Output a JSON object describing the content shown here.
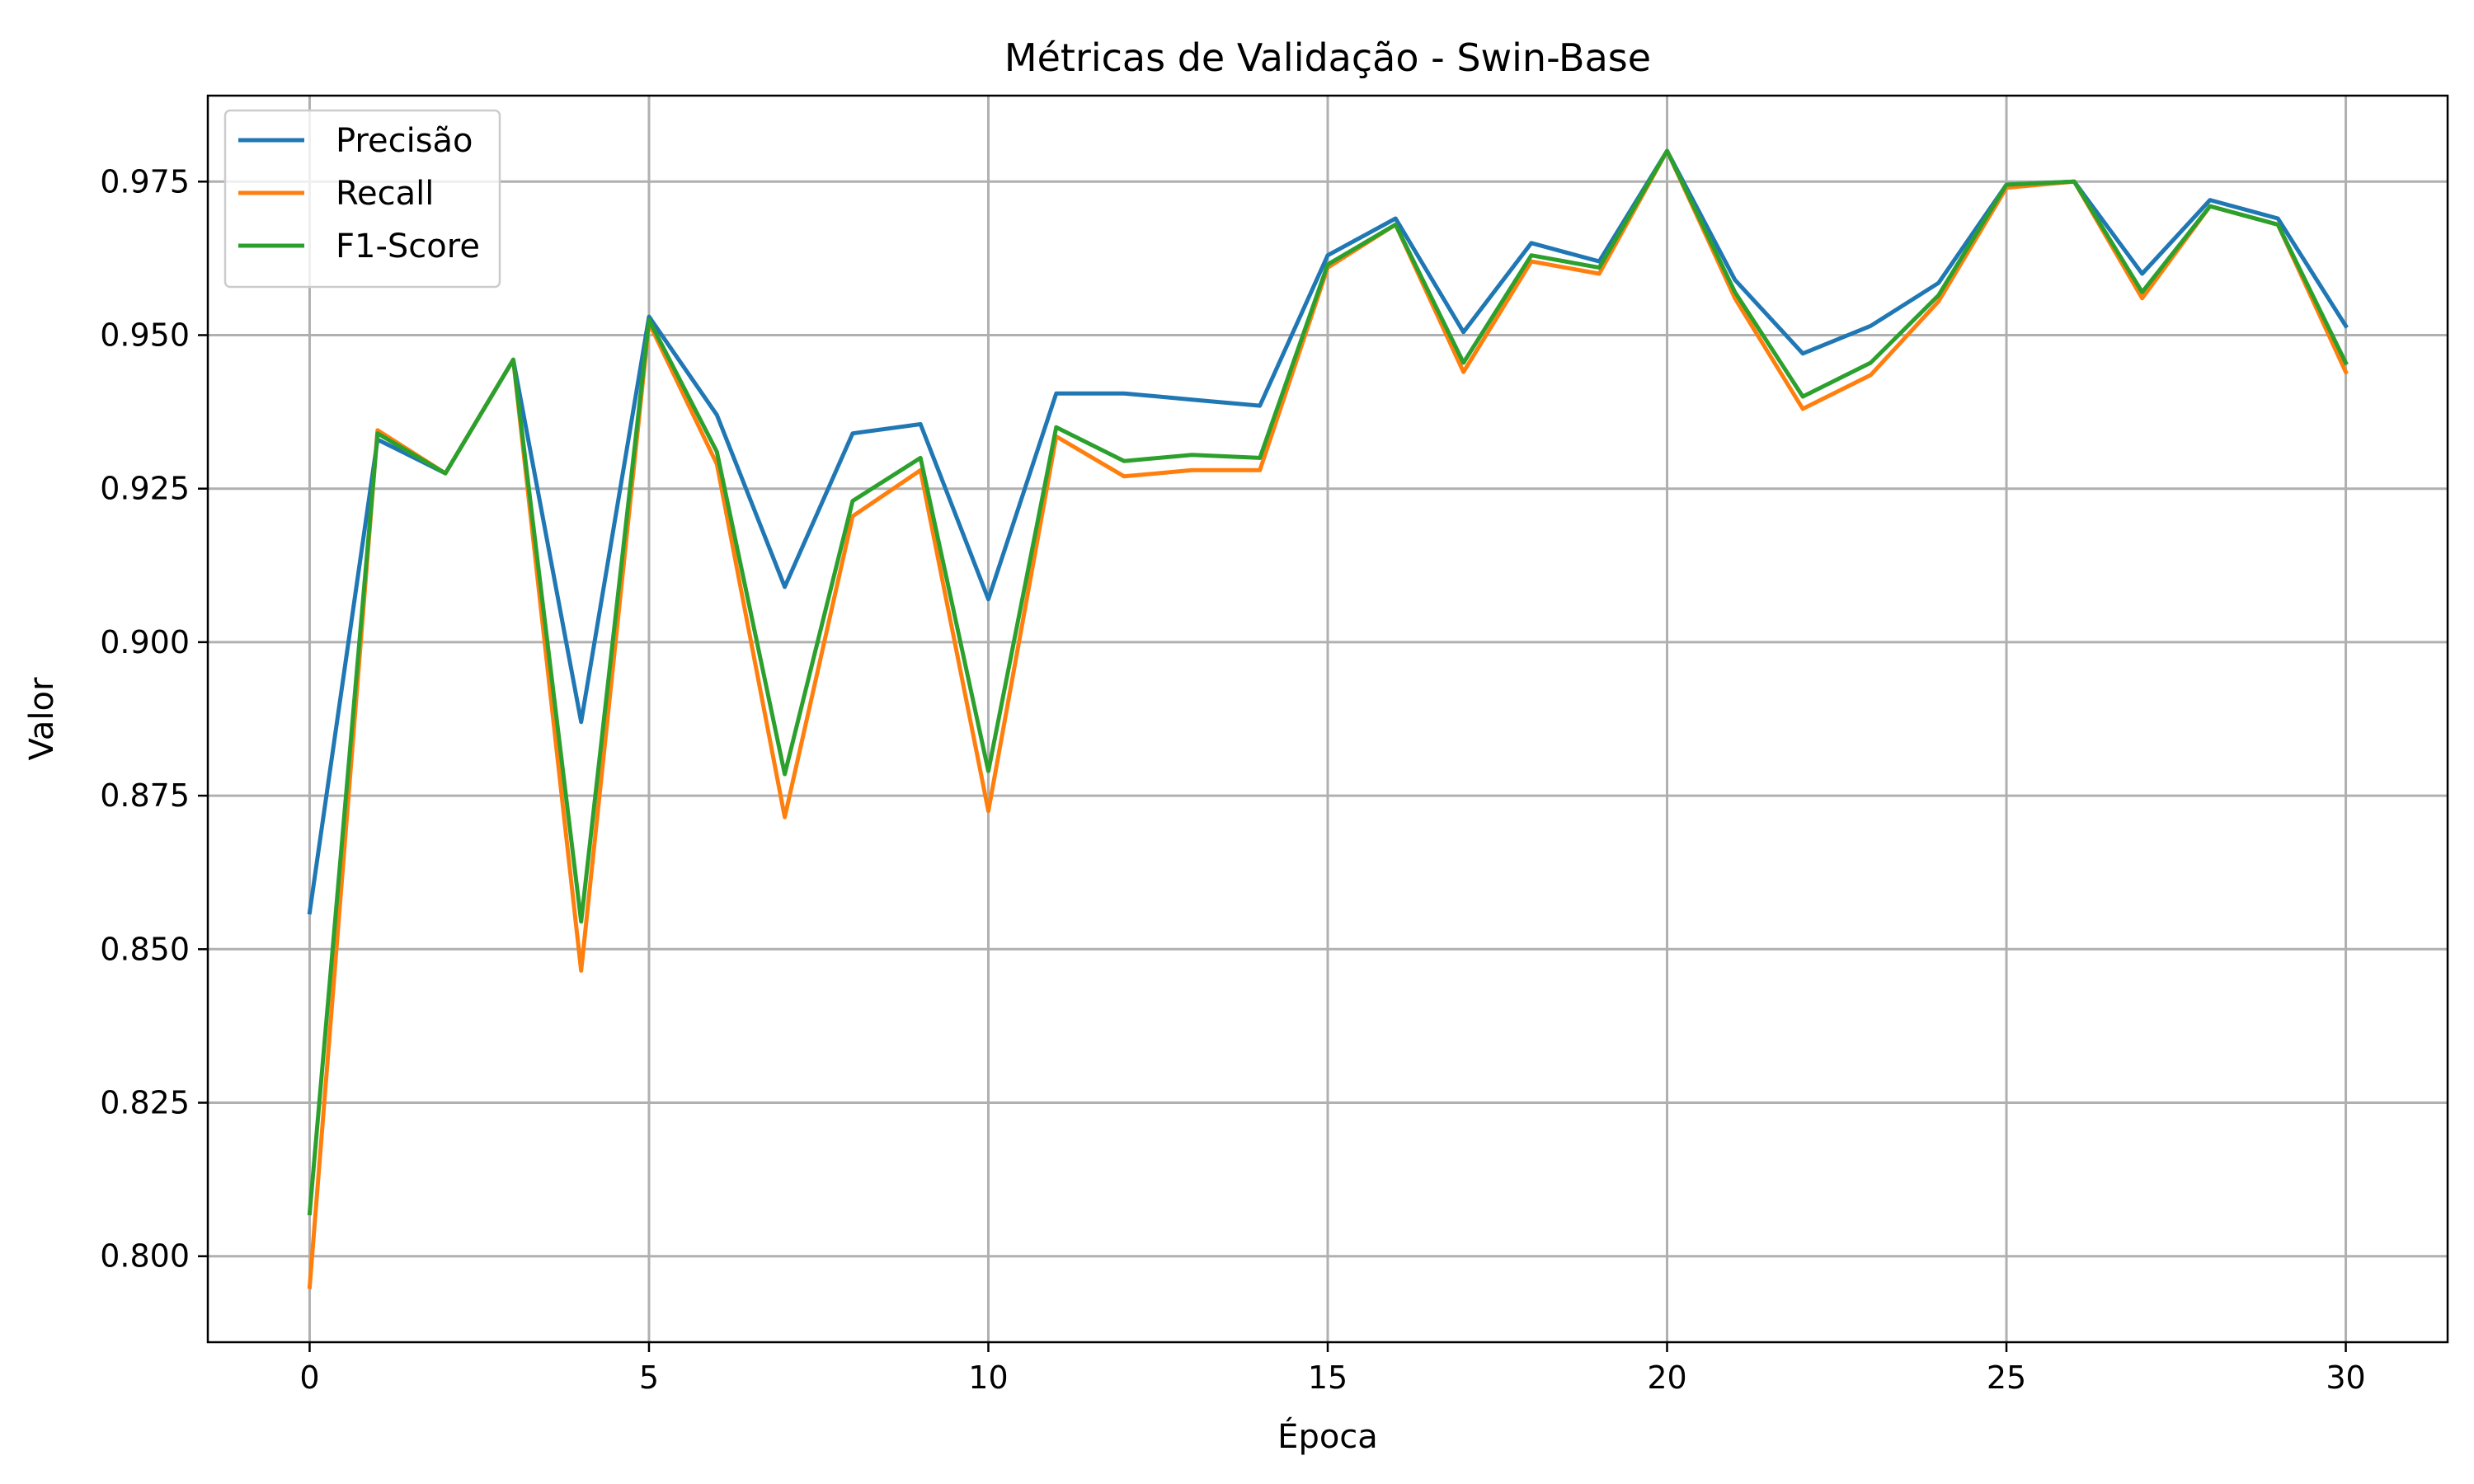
{
  "chart_data": {
    "type": "line",
    "title": "Métricas de Validação - Swin-Base",
    "xlabel": "Época",
    "ylabel": "Valor",
    "xlim": [
      -1.5,
      31.5
    ],
    "ylim": [
      0.786,
      0.989
    ],
    "xticks": [
      0,
      5,
      10,
      15,
      20,
      25,
      30
    ],
    "xtick_labels": [
      "0",
      "5",
      "10",
      "15",
      "20",
      "25",
      "30"
    ],
    "yticks": [
      0.8,
      0.825,
      0.85,
      0.875,
      0.9,
      0.925,
      0.95,
      0.975
    ],
    "ytick_labels": [
      "0.800",
      "0.825",
      "0.850",
      "0.875",
      "0.900",
      "0.925",
      "0.950",
      "0.975"
    ],
    "grid": true,
    "legend_position": "top-left",
    "x": [
      0,
      1,
      2,
      3,
      4,
      5,
      6,
      7,
      8,
      9,
      10,
      11,
      12,
      13,
      14,
      15,
      16,
      17,
      18,
      19,
      20,
      21,
      22,
      23,
      24,
      25,
      26,
      27,
      28,
      29,
      30
    ],
    "series": [
      {
        "name": "Precisão",
        "color": "#1f77b4",
        "values": [
          0.856,
          0.933,
          0.9275,
          0.946,
          0.887,
          0.953,
          0.937,
          0.909,
          0.934,
          0.9355,
          0.907,
          0.9405,
          0.9405,
          0.9395,
          0.9385,
          0.963,
          0.969,
          0.9505,
          0.965,
          0.962,
          0.98,
          0.959,
          0.947,
          0.9515,
          0.9585,
          0.9745,
          0.975,
          0.96,
          0.972,
          0.969,
          0.9515
        ]
      },
      {
        "name": "Recall",
        "color": "#ff7f0e",
        "values": [
          0.795,
          0.9345,
          0.9275,
          0.946,
          0.8465,
          0.952,
          0.929,
          0.8715,
          0.9205,
          0.928,
          0.8725,
          0.9335,
          0.927,
          0.928,
          0.928,
          0.961,
          0.968,
          0.944,
          0.962,
          0.96,
          0.98,
          0.956,
          0.938,
          0.9435,
          0.9555,
          0.974,
          0.975,
          0.956,
          0.971,
          0.968,
          0.944
        ]
      },
      {
        "name": "F1-Score",
        "color": "#2ca02c",
        "values": [
          0.807,
          0.934,
          0.9275,
          0.946,
          0.8545,
          0.9525,
          0.931,
          0.8785,
          0.923,
          0.93,
          0.879,
          0.935,
          0.9295,
          0.9305,
          0.93,
          0.9615,
          0.968,
          0.9455,
          0.963,
          0.961,
          0.98,
          0.957,
          0.94,
          0.9455,
          0.9565,
          0.9745,
          0.975,
          0.957,
          0.971,
          0.968,
          0.9455
        ]
      }
    ]
  }
}
